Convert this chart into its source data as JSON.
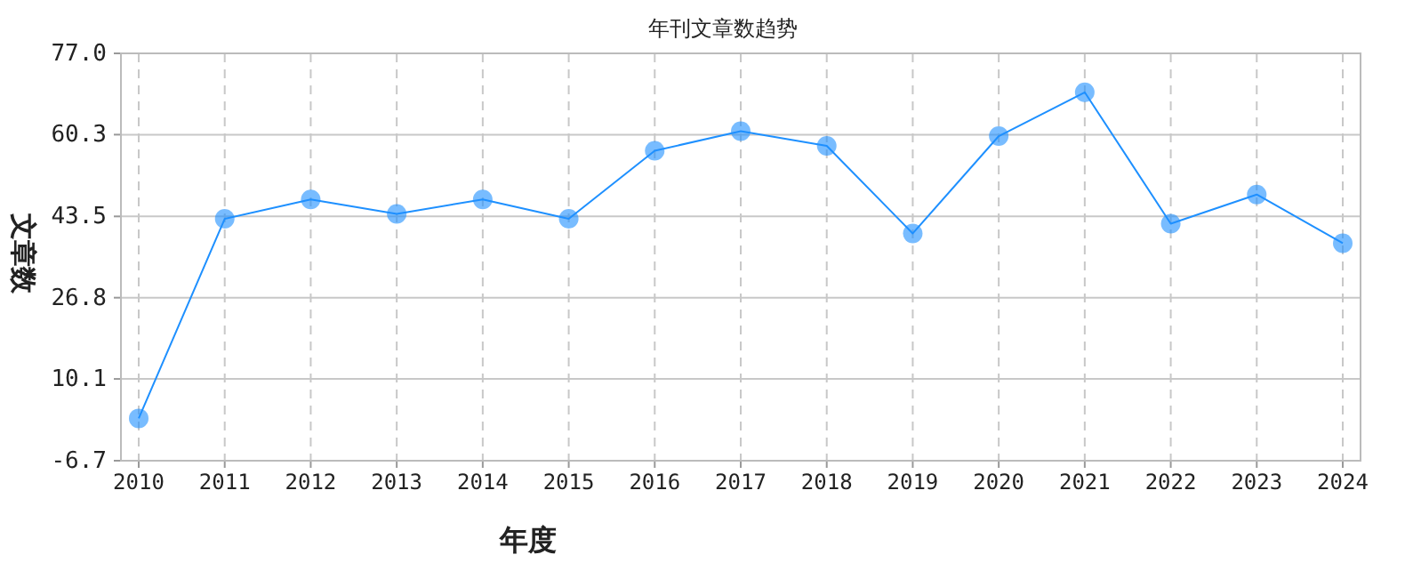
{
  "chart_data": {
    "type": "line",
    "title": "年刊文章数趋势",
    "xlabel": "年度",
    "ylabel": "文章数",
    "categories": [
      "2010",
      "2011",
      "2012",
      "2013",
      "2014",
      "2015",
      "2016",
      "2017",
      "2018",
      "2019",
      "2020",
      "2021",
      "2022",
      "2023",
      "2024"
    ],
    "series": [
      {
        "color": "#1e90ff",
        "values": [
          2,
          43,
          47,
          44,
          47,
          43,
          57,
          61,
          58,
          40,
          60,
          69,
          42,
          48,
          38
        ]
      }
    ],
    "ylim": [
      -6.7,
      77.0
    ],
    "yticks": [
      -6.7,
      10.1,
      26.8,
      43.5,
      60.3,
      {
        "value": 77.0,
        "label": "77.0"
      }
    ],
    "grid": true,
    "marker": "circle",
    "line_style": "solid"
  }
}
